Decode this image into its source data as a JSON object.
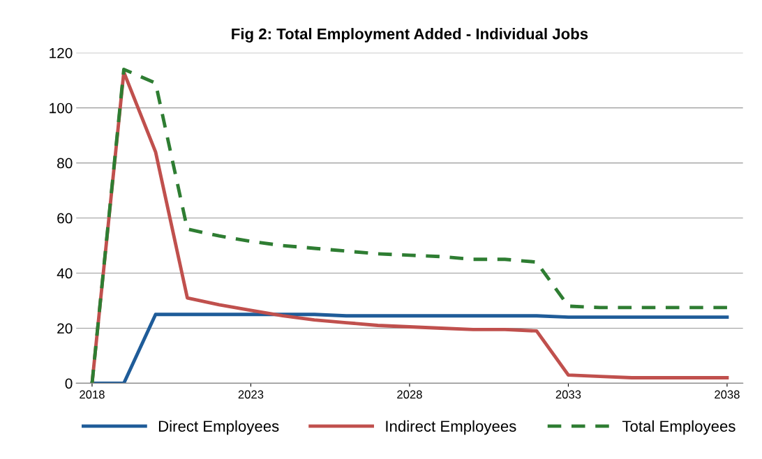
{
  "chart_data": {
    "type": "line",
    "title": "Fig 2: Total Employment Added - Individual Jobs",
    "x": [
      2018,
      2019,
      2020,
      2021,
      2022,
      2023,
      2024,
      2025,
      2026,
      2027,
      2028,
      2029,
      2030,
      2031,
      2032,
      2033,
      2034,
      2035,
      2036,
      2037,
      2038
    ],
    "series": [
      {
        "name": "Direct Employees",
        "color": "#1f5c99",
        "line_style": "solid",
        "values": [
          0,
          0,
          25,
          25,
          25,
          25,
          25,
          25,
          24.5,
          24.5,
          24.5,
          24.5,
          24.5,
          24.5,
          24.5,
          24,
          24,
          24,
          24,
          24,
          24
        ]
      },
      {
        "name": "Indirect Employees",
        "color": "#c0504d",
        "line_style": "solid",
        "values": [
          0,
          113,
          84,
          31,
          28.5,
          26.5,
          24.5,
          23,
          22,
          21,
          20.5,
          20,
          19.5,
          19.5,
          19,
          3,
          2.5,
          2,
          2,
          2,
          2
        ]
      },
      {
        "name": "Total Employees",
        "color": "#2e7d32",
        "line_style": "dashed",
        "values": [
          0,
          114,
          109,
          56,
          53.5,
          51.5,
          50,
          49,
          48,
          47,
          46.5,
          46,
          45,
          45,
          44,
          28,
          27.5,
          27.5,
          27.5,
          27.5,
          27.5
        ]
      }
    ],
    "xlim": [
      2017.5,
      2038.5
    ],
    "xticks": [
      2018,
      2023,
      2028,
      2033,
      2038
    ],
    "ylim": [
      0,
      120
    ],
    "yticks": [
      0,
      20,
      40,
      60,
      80,
      100,
      120
    ],
    "grid": "y",
    "legend": "bottom",
    "marker": "none"
  }
}
